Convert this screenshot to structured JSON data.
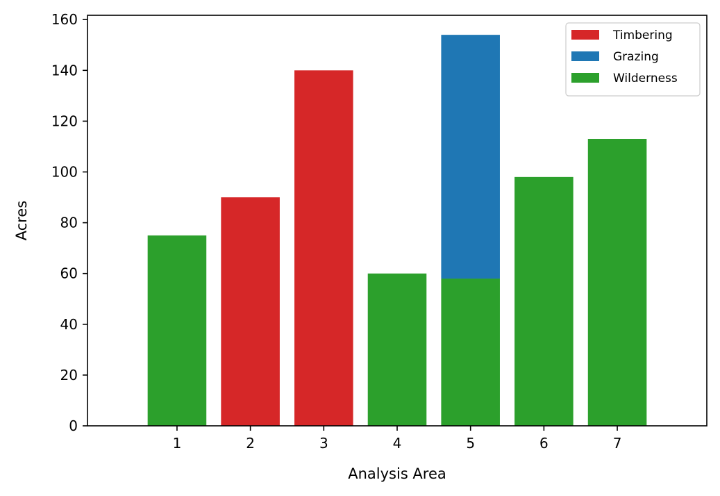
{
  "chart_data": {
    "type": "bar",
    "stacked": true,
    "categories": [
      "1",
      "2",
      "3",
      "4",
      "5",
      "6",
      "7"
    ],
    "series": [
      {
        "name": "Timbering",
        "color": "#d62728",
        "values": [
          0,
          90,
          140,
          0,
          0,
          0,
          0
        ]
      },
      {
        "name": "Grazing",
        "color": "#1f77b4",
        "values": [
          0,
          0,
          0,
          0,
          96,
          0,
          0
        ]
      },
      {
        "name": "Wilderness",
        "color": "#2ca02c",
        "values": [
          75,
          0,
          0,
          60,
          58,
          98,
          113
        ]
      }
    ],
    "stack_order": [
      "Wilderness",
      "Timbering",
      "Grazing"
    ],
    "xlabel": "Analysis Area",
    "ylabel": "Acres",
    "ylim": [
      0,
      161.7
    ],
    "yticks": [
      0,
      20,
      40,
      60,
      80,
      100,
      120,
      140,
      160
    ],
    "grid": false,
    "legend": {
      "position": "top-right",
      "entries": [
        "Timbering",
        "Grazing",
        "Wilderness"
      ]
    }
  }
}
